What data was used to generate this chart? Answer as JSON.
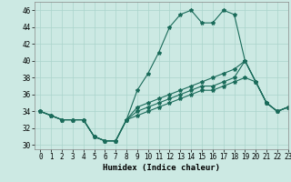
{
  "xlabel": "Humidex (Indice chaleur)",
  "ylabel": "",
  "xlim": [
    -0.5,
    23
  ],
  "ylim": [
    29.5,
    47
  ],
  "yticks": [
    30,
    32,
    34,
    36,
    38,
    40,
    42,
    44,
    46
  ],
  "xticks": [
    0,
    1,
    2,
    3,
    4,
    5,
    6,
    7,
    8,
    9,
    10,
    11,
    12,
    13,
    14,
    15,
    16,
    17,
    18,
    19,
    20,
    21,
    22,
    23
  ],
  "background_color": "#cce9e3",
  "line_color": "#1a6b5a",
  "lines": [
    {
      "x": [
        0,
        1,
        2,
        3,
        4,
        5,
        6,
        7,
        8,
        9,
        10,
        11,
        12,
        13,
        14,
        15,
        16,
        17,
        18,
        19,
        20,
        21,
        22,
        23
      ],
      "y": [
        34,
        33.5,
        33,
        33,
        33,
        31,
        30.5,
        30.5,
        33,
        36.5,
        38.5,
        41,
        44,
        45.5,
        46,
        44.5,
        44.5,
        46,
        45.5,
        40,
        37.5,
        35,
        34,
        34.5
      ]
    },
    {
      "x": [
        0,
        1,
        2,
        3,
        4,
        5,
        6,
        7,
        8,
        9,
        10,
        11,
        12,
        13,
        14,
        15,
        16,
        17,
        18,
        19,
        20,
        21,
        22,
        23
      ],
      "y": [
        34,
        33.5,
        33,
        33,
        33,
        31,
        30.5,
        30.5,
        33,
        34.5,
        35,
        35.5,
        36,
        36.5,
        37,
        37.5,
        38,
        38.5,
        39,
        40,
        37.5,
        35,
        34,
        34.5
      ]
    },
    {
      "x": [
        0,
        1,
        2,
        3,
        4,
        5,
        6,
        7,
        8,
        9,
        10,
        11,
        12,
        13,
        14,
        15,
        16,
        17,
        18,
        19,
        20,
        21,
        22,
        23
      ],
      "y": [
        34,
        33.5,
        33,
        33,
        33,
        31,
        30.5,
        30.5,
        33,
        34,
        34.5,
        35,
        35.5,
        36,
        36.5,
        37,
        37,
        37.5,
        38,
        40,
        37.5,
        35,
        34,
        34.5
      ]
    },
    {
      "x": [
        0,
        1,
        2,
        3,
        4,
        5,
        6,
        7,
        8,
        9,
        10,
        11,
        12,
        13,
        14,
        15,
        16,
        17,
        18,
        19,
        20,
        21,
        22,
        23
      ],
      "y": [
        34,
        33.5,
        33,
        33,
        33,
        31,
        30.5,
        30.5,
        33,
        33.5,
        34,
        34.5,
        35,
        35.5,
        36,
        36.5,
        36.5,
        37,
        37.5,
        38,
        37.5,
        35,
        34,
        34.5
      ]
    }
  ],
  "grid_color": "#aad4cc",
  "title_fontsize": 7,
  "axis_fontsize": 6.5,
  "tick_fontsize": 5.5
}
